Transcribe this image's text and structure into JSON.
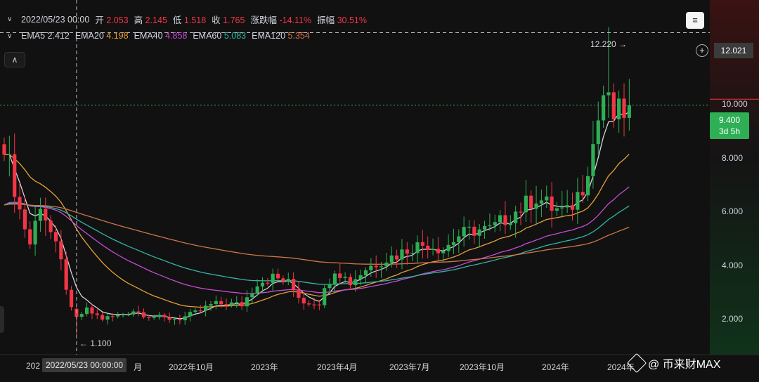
{
  "header": {
    "ohlc_date": "2022/05/23 00:00",
    "open_label": "开",
    "open_value": "2.053",
    "high_label": "高",
    "high_value": "2.145",
    "low_label": "低",
    "low_value": "1.518",
    "close_label": "收",
    "close_value": "1.765",
    "change_label": "涨跌幅",
    "change_value": "-14.11%",
    "amplitude_label": "振幅",
    "amplitude_value": "30.51%",
    "ema": [
      {
        "label": "EMA5",
        "value": "2.412",
        "color": "#d1d4dc"
      },
      {
        "label": "EMA20",
        "value": "4.198",
        "color": "#e5a03a"
      },
      {
        "label": "EMA40",
        "value": "4.858",
        "color": "#c84bd8"
      },
      {
        "label": "EMA60",
        "value": "5.083",
        "color": "#33b5a6"
      },
      {
        "label": "EMA120",
        "value": "5.354",
        "color": "#d0744a"
      }
    ],
    "collapse_icon": "chevron-up-icon",
    "axis_icon": "axis-settings-icon"
  },
  "y_axis": {
    "ticks": [
      "10.000",
      "8.000",
      "6.000",
      "4.000",
      "2.000"
    ],
    "crosshair_price": "12.021",
    "last_price": "9.400",
    "countdown": "3d 5h"
  },
  "x_axis": {
    "ticks": [
      "202",
      "月",
      "2022年10月",
      "2023年",
      "2023年4月",
      "2023年7月",
      "2023年10月",
      "2024年",
      "2024年"
    ],
    "crosshair_time": "2022/05/23 00:00:00"
  },
  "annotations": {
    "high_marker": "12.220",
    "low_marker": "1.100"
  },
  "watermark": "@ 币来财MAX",
  "chart_data": {
    "type": "candlestick",
    "interval": "weekly",
    "y_range": [
      0.4,
      13.2
    ],
    "y_ticks": [
      2,
      4,
      6,
      8,
      10
    ],
    "grid": false,
    "colors": {
      "up": "#2eae55",
      "down": "#f23645"
    },
    "all_time_high": 12.22,
    "all_time_low": 1.1,
    "current_price": 9.4,
    "ema_series": [
      {
        "name": "EMA5",
        "color": "#d1d4dc"
      },
      {
        "name": "EMA20",
        "color": "#e5a03a"
      },
      {
        "name": "EMA40",
        "color": "#c84bd8"
      },
      {
        "name": "EMA60",
        "color": "#33b5a6"
      },
      {
        "name": "EMA120",
        "color": "#d0744a"
      }
    ],
    "close_anchors": [
      [
        0,
        8.1
      ],
      [
        3,
        5.6
      ],
      [
        5,
        4.4
      ],
      [
        7,
        5.9
      ],
      [
        9,
        4.8
      ],
      [
        11,
        3.7
      ],
      [
        13,
        2.0
      ],
      [
        14,
        1.76
      ],
      [
        16,
        2.0
      ],
      [
        19,
        1.7
      ],
      [
        22,
        1.8
      ],
      [
        25,
        2.0
      ],
      [
        28,
        1.8
      ],
      [
        31,
        1.7
      ],
      [
        34,
        1.7
      ],
      [
        37,
        1.9
      ],
      [
        40,
        2.2
      ],
      [
        43,
        2.25
      ],
      [
        46,
        2.2
      ],
      [
        49,
        3.0
      ],
      [
        52,
        3.2
      ],
      [
        55,
        3.0
      ],
      [
        58,
        2.3
      ],
      [
        61,
        2.3
      ],
      [
        64,
        3.5
      ],
      [
        67,
        3.0
      ],
      [
        70,
        3.5
      ],
      [
        73,
        3.8
      ],
      [
        76,
        4.0
      ],
      [
        79,
        4.3
      ],
      [
        82,
        4.4
      ],
      [
        85,
        4.2
      ],
      [
        88,
        4.7
      ],
      [
        91,
        4.9
      ],
      [
        94,
        4.9
      ],
      [
        97,
        5.3
      ],
      [
        100,
        5.7
      ],
      [
        103,
        6.1
      ],
      [
        106,
        5.7
      ],
      [
        109,
        5.5
      ],
      [
        112,
        6.5
      ],
      [
        114,
        8.0
      ],
      [
        116,
        9.8
      ],
      [
        118,
        9.0
      ],
      [
        120,
        9.2
      ],
      [
        121,
        9.4
      ]
    ]
  }
}
